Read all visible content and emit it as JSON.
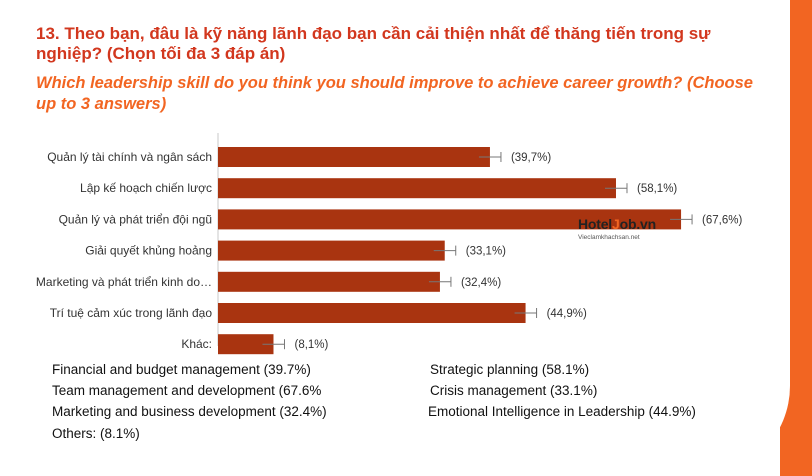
{
  "title_vi": "13. Theo bạn, đâu là kỹ năng lãnh đạo bạn cần cải thiện nhất để thăng tiến trong sự nghiệp? (Chọn tối đa 3 đáp án)",
  "title_en": "Which leadership skill do you think you should improve to achieve career growth? (Choose up to 3 answers)",
  "logo": {
    "text_pre": "Hotel",
    "text_j": "J",
    "text_post": "ob.vn",
    "sub": "Vieclamkhachsan.net"
  },
  "colors": {
    "bar": "#a93410",
    "accent": "#f26522",
    "title": "#d2371e"
  },
  "chart_data": {
    "type": "bar",
    "orientation": "horizontal",
    "categories": [
      "Quản lý tài chính và ngân sách",
      "Lập kế hoạch chiến lược",
      "Quản lý và phát triển đội ngũ",
      "Giải quyết khủng hoảng",
      "Marketing và phát triển kinh do…",
      "Trí tuệ cảm xúc trong lãnh đạo",
      "Khác:"
    ],
    "values": [
      39.7,
      58.1,
      67.6,
      33.1,
      32.4,
      44.9,
      8.1
    ],
    "value_labels": [
      "(39,7%)",
      "(58,1%)",
      "(67,6%)",
      "(33,1%)",
      "(32,4%)",
      "(44,9%)",
      "(8,1%)"
    ],
    "xlim": [
      0,
      72
    ],
    "error_bars": true,
    "grid": false
  },
  "legend": [
    "Financial and budget management (39.7%)",
    "Strategic planning (58.1%)",
    "Team management and development (67.6%",
    "Crisis management (33.1%)",
    "Marketing and business development (32.4%)",
    "Emotional Intelligence in Leadership (44.9%)",
    "Others: (8.1%)"
  ]
}
